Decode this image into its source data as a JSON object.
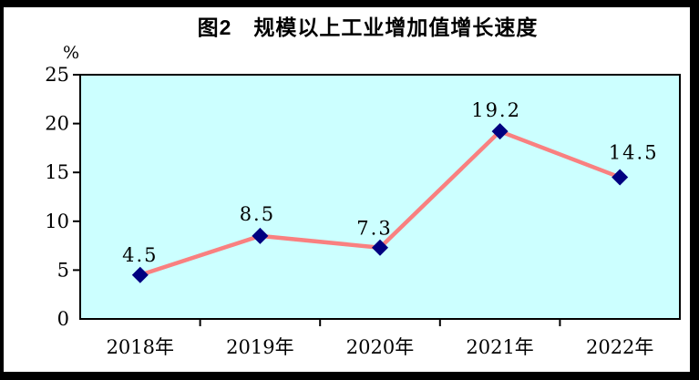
{
  "figure": {
    "title": "图2　规模以上工业增加值增长速度",
    "unit_label": "%"
  },
  "chart_data": {
    "type": "line",
    "title": "图2　规模以上工业增加值增长速度",
    "categories": [
      "2018年",
      "2019年",
      "2020年",
      "2021年",
      "2022年"
    ],
    "series": [
      {
        "name": "规模以上工业增加值增长速度",
        "values": [
          4.5,
          8.5,
          7.3,
          19.2,
          14.5
        ]
      }
    ],
    "data_labels": [
      "4.5",
      "8.5",
      "7.3",
      "19.2",
      "14.5"
    ],
    "xlabel": "",
    "ylabel": "%",
    "ylim": [
      0,
      25
    ],
    "ytick_interval": 5,
    "yticks": [
      0,
      5,
      10,
      15,
      20,
      25
    ],
    "grid": false,
    "legend_position": "none",
    "marker_shape": "diamond",
    "colors": {
      "line": "#F98080",
      "marker": "#000080",
      "plot_background": "#CCFFFF",
      "axis": "#000000",
      "text": "#000000",
      "frame_border": "#000000"
    }
  }
}
